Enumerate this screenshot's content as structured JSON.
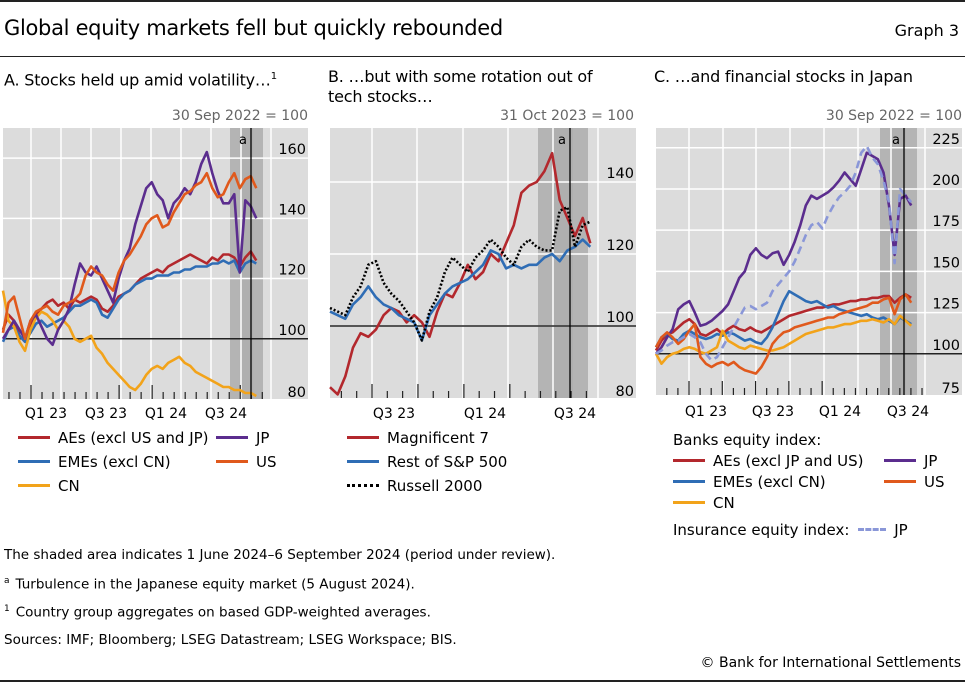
{
  "header": {
    "title": "Global equity markets fell but quickly rebounded",
    "graph_label": "Graph 3"
  },
  "colors": {
    "red": "#b3282d",
    "blue": "#2f6db5",
    "yellow": "#f2a31a",
    "purple": "#5b2d8e",
    "orange": "#e0591c",
    "lightblue": "#8a97d8",
    "black": "#000000",
    "plot_bg": "#dcdcdc",
    "shade": "#b4b4b4"
  },
  "chart_data": [
    {
      "id": "A",
      "type": "line",
      "title": "A. Stocks held up amid volatility…",
      "title_sup": "1",
      "unit_label": "30 Sep 2022 = 100",
      "xlabel": "",
      "ylabel": "",
      "x_range": [
        "2022-10",
        "2024-10"
      ],
      "x_ticks": [
        "Q1 23",
        "Q3 23",
        "Q1 24",
        "Q3 24"
      ],
      "ylim": [
        80,
        170
      ],
      "y_ticks": [
        80,
        100,
        120,
        140,
        160
      ],
      "baseline": 100,
      "shaded_period": [
        "2024-06-01",
        "2024-09-06"
      ],
      "event_line": {
        "date": "2024-08-05",
        "label": "a"
      },
      "grid": true,
      "x": [
        0,
        0.5,
        1,
        1.5,
        2,
        2.5,
        3,
        3.5,
        4,
        4.5,
        5,
        5.5,
        6,
        6.5,
        7,
        7.5,
        8,
        8.5,
        9,
        9.5,
        10,
        10.5,
        11,
        11.5,
        12,
        12.5,
        13,
        13.5,
        14,
        14.5,
        15,
        15.5,
        16,
        16.5,
        17,
        17.5,
        18,
        18.5,
        19,
        19.5,
        20,
        20.5,
        21,
        21.5,
        22,
        22.5,
        23
      ],
      "series": [
        {
          "name": "AEs (excl US and JP)",
          "color_key": "red",
          "style": "solid",
          "values": [
            103,
            108,
            106,
            101,
            99,
            104,
            108,
            110,
            112,
            113,
            111,
            112,
            110,
            113,
            112,
            113,
            114,
            113,
            110,
            109,
            111,
            114,
            115,
            116,
            118,
            120,
            121,
            122,
            123,
            122,
            124,
            125,
            126,
            127,
            128,
            127,
            126,
            125,
            127,
            126,
            128,
            128,
            127,
            124,
            127,
            129,
            126
          ]
        },
        {
          "name": "EMEs (excl CN)",
          "color_key": "blue",
          "style": "solid",
          "values": [
            99,
            103,
            104,
            101,
            99,
            102,
            105,
            106,
            104,
            105,
            106,
            107,
            109,
            111,
            111,
            112,
            113,
            112,
            108,
            107,
            110,
            113,
            115,
            116,
            118,
            119,
            120,
            120,
            121,
            121,
            121,
            122,
            122,
            123,
            123,
            124,
            124,
            124,
            125,
            125,
            126,
            125,
            126,
            122,
            125,
            126,
            125
          ]
        },
        {
          "name": "CN",
          "color_key": "yellow",
          "style": "solid",
          "values": [
            116,
            106,
            104,
            99,
            96,
            103,
            107,
            109,
            108,
            106,
            103,
            106,
            104,
            100,
            99,
            100,
            101,
            97,
            95,
            92,
            90,
            88,
            86,
            84,
            83,
            85,
            88,
            90,
            91,
            90,
            92,
            93,
            94,
            92,
            91,
            89,
            88,
            87,
            86,
            85,
            84,
            84,
            83,
            83,
            82,
            82,
            81
          ]
        },
        {
          "name": "JP",
          "color_key": "purple",
          "style": "solid",
          "values": [
            100,
            103,
            106,
            103,
            100,
            106,
            108,
            104,
            100,
            98,
            103,
            106,
            110,
            118,
            125,
            122,
            121,
            124,
            120,
            116,
            112,
            120,
            126,
            130,
            138,
            144,
            150,
            152,
            148,
            146,
            140,
            145,
            147,
            150,
            148,
            152,
            158,
            162,
            155,
            149,
            145,
            145,
            148,
            122,
            146,
            144,
            140
          ]
        },
        {
          "name": "US",
          "color_key": "orange",
          "style": "solid",
          "values": [
            102,
            112,
            114,
            107,
            100,
            106,
            109,
            110,
            111,
            109,
            108,
            111,
            112,
            113,
            115,
            121,
            124,
            122,
            121,
            118,
            116,
            122,
            126,
            128,
            131,
            134,
            138,
            140,
            141,
            137,
            138,
            142,
            145,
            148,
            149,
            151,
            152,
            155,
            150,
            147,
            148,
            152,
            155,
            150,
            153,
            154,
            150
          ]
        }
      ]
    },
    {
      "id": "B",
      "type": "line",
      "title": "B. …but with some rotation out of tech stocks…",
      "unit_label": "31 Oct 2023 = 100",
      "xlabel": "",
      "ylabel": "",
      "x_range": [
        "2023-04",
        "2024-10"
      ],
      "x_ticks": [
        "Q3 23",
        "Q1 24",
        "Q3 24"
      ],
      "ylim": [
        80,
        155
      ],
      "y_ticks": [
        80,
        100,
        120,
        140
      ],
      "baseline": 100,
      "shaded_period": [
        "2024-06-01",
        "2024-09-06"
      ],
      "event_line": {
        "date": "2024-08-05",
        "label": "a"
      },
      "grid": true,
      "x": [
        0,
        0.5,
        1,
        1.5,
        2,
        2.5,
        3,
        3.5,
        4,
        4.5,
        5,
        5.5,
        6,
        6.5,
        7,
        7.5,
        8,
        8.5,
        9,
        9.5,
        10,
        10.5,
        11,
        11.5,
        12,
        12.5,
        13,
        13.5,
        14,
        14.5,
        15,
        15.5,
        16,
        16.5,
        17
      ],
      "series": [
        {
          "name": "Magnificent 7",
          "color_key": "red",
          "style": "solid",
          "values": [
            83,
            81,
            86,
            94,
            98,
            97,
            99,
            103,
            105,
            104,
            101,
            103,
            101,
            97,
            104,
            109,
            108,
            112,
            117,
            113,
            115,
            120,
            118,
            123,
            128,
            137,
            139,
            140,
            143,
            148,
            135,
            130,
            125,
            130,
            123
          ]
        },
        {
          "name": "Rest of S&P 500",
          "color_key": "blue",
          "style": "solid",
          "values": [
            104,
            103,
            102,
            106,
            108,
            111,
            108,
            106,
            105,
            103,
            102,
            101,
            96,
            103,
            106,
            109,
            111,
            112,
            113,
            115,
            117,
            121,
            120,
            116,
            117,
            116,
            117,
            117,
            119,
            120,
            118,
            121,
            122,
            124,
            122
          ]
        },
        {
          "name": "Russell 2000",
          "color_key": "black",
          "style": "dotted",
          "values": [
            105,
            104,
            103,
            108,
            111,
            117,
            118,
            112,
            109,
            107,
            104,
            101,
            96,
            104,
            108,
            115,
            119,
            117,
            115,
            119,
            121,
            124,
            122,
            119,
            117,
            122,
            124,
            122,
            121,
            121,
            132,
            133,
            122,
            128,
            129
          ]
        }
      ]
    },
    {
      "id": "C",
      "type": "line",
      "title": "C. …and financial stocks in Japan",
      "unit_label": "30 Sep 2022 = 100",
      "xlabel": "",
      "ylabel": "",
      "x_range": [
        "2022-10",
        "2024-10"
      ],
      "x_ticks": [
        "Q1 23",
        "Q3 23",
        "Q1 24",
        "Q3 24"
      ],
      "ylim": [
        75,
        237
      ],
      "y_ticks": [
        75,
        100,
        125,
        150,
        175,
        200,
        225
      ],
      "baseline": 100,
      "shaded_period": [
        "2024-06-01",
        "2024-09-06"
      ],
      "event_line": {
        "date": "2024-08-05",
        "label": "a"
      },
      "grid": true,
      "x": [
        0,
        0.5,
        1,
        1.5,
        2,
        2.5,
        3,
        3.5,
        4,
        4.5,
        5,
        5.5,
        6,
        6.5,
        7,
        7.5,
        8,
        8.5,
        9,
        9.5,
        10,
        10.5,
        11,
        11.5,
        12,
        12.5,
        13,
        13.5,
        14,
        14.5,
        15,
        15.5,
        16,
        16.5,
        17,
        17.5,
        18,
        18.5,
        19,
        19.5,
        20,
        20.5,
        21,
        21.5,
        22,
        22.5,
        23
      ],
      "legend_header": "Banks equity index:",
      "legend_footer": "Insurance equity index:",
      "series": [
        {
          "name": "AEs (excl JP and US)",
          "color_key": "red",
          "style": "solid",
          "values": [
            102,
            108,
            112,
            113,
            116,
            119,
            121,
            118,
            112,
            111,
            113,
            115,
            112,
            115,
            117,
            115,
            114,
            116,
            114,
            113,
            115,
            117,
            119,
            121,
            123,
            124,
            125,
            126,
            127,
            128,
            128,
            129,
            130,
            130,
            131,
            132,
            132,
            133,
            133,
            134,
            134,
            135,
            135,
            131,
            134,
            136,
            134
          ]
        },
        {
          "name": "EMEs (excl CN)",
          "color_key": "blue",
          "style": "solid",
          "values": [
            104,
            110,
            112,
            109,
            108,
            112,
            114,
            112,
            110,
            109,
            110,
            112,
            111,
            113,
            112,
            110,
            108,
            109,
            107,
            106,
            110,
            116,
            124,
            132,
            138,
            136,
            134,
            132,
            131,
            132,
            130,
            128,
            129,
            127,
            126,
            125,
            124,
            123,
            124,
            122,
            121,
            122,
            120,
            118,
            122,
            120,
            118
          ]
        },
        {
          "name": "CN",
          "color_key": "yellow",
          "style": "solid",
          "values": [
            100,
            94,
            98,
            100,
            101,
            103,
            104,
            103,
            101,
            100,
            102,
            104,
            114,
            108,
            106,
            104,
            103,
            105,
            104,
            103,
            102,
            102,
            103,
            104,
            106,
            108,
            110,
            112,
            113,
            114,
            115,
            116,
            116,
            117,
            118,
            118,
            119,
            120,
            120,
            121,
            120,
            119,
            121,
            118,
            123,
            120,
            117
          ]
        },
        {
          "name": "JP",
          "color_key": "purple",
          "style": "solid",
          "values": [
            100,
            104,
            110,
            115,
            127,
            130,
            132,
            125,
            117,
            118,
            120,
            123,
            126,
            130,
            138,
            146,
            150,
            160,
            164,
            160,
            158,
            161,
            162,
            154,
            160,
            168,
            178,
            190,
            196,
            194,
            196,
            198,
            201,
            205,
            210,
            206,
            202,
            212,
            222,
            220,
            218,
            210,
            190,
            160,
            194,
            196,
            190
          ]
        },
        {
          "name": "US",
          "color_key": "orange",
          "style": "solid",
          "values": [
            104,
            110,
            113,
            110,
            106,
            109,
            114,
            118,
            98,
            94,
            92,
            94,
            95,
            93,
            95,
            92,
            90,
            89,
            88,
            92,
            98,
            106,
            110,
            113,
            114,
            116,
            117,
            118,
            119,
            120,
            121,
            122,
            122,
            124,
            125,
            126,
            127,
            128,
            129,
            131,
            131,
            133,
            134,
            124,
            133,
            136,
            131
          ]
        },
        {
          "name": "JP (insurance)",
          "color_key": "lightblue",
          "style": "dashed",
          "values": [
            100,
            102,
            105,
            107,
            108,
            110,
            112,
            110,
            107,
            100,
            96,
            98,
            104,
            110,
            116,
            122,
            128,
            129,
            127,
            129,
            131,
            138,
            142,
            146,
            150,
            156,
            164,
            172,
            178,
            180,
            176,
            184,
            190,
            195,
            198,
            202,
            210,
            222,
            226,
            219,
            215,
            205,
            192,
            155,
            200,
            196,
            192
          ]
        }
      ]
    }
  ],
  "panels": {
    "A": {
      "title": "A. Stocks held up amid volatility…",
      "title_sup": "1",
      "unit": "30 Sep 2022 = 100",
      "event_label": "a",
      "yticks": [
        "160",
        "140",
        "120",
        "100",
        "80"
      ],
      "xticks": [
        "Q1 23",
        "Q3 23",
        "Q1 24",
        "Q3 24"
      ],
      "legend": [
        "AEs (excl US and JP)",
        "JP",
        "EMEs (excl CN)",
        "US",
        "CN"
      ]
    },
    "B": {
      "title_line1": "B. …but with some rotation out of",
      "title_line2": "tech stocks…",
      "unit": "31 Oct 2023 = 100",
      "event_label": "a",
      "yticks": [
        "140",
        "120",
        "100",
        "80"
      ],
      "xticks": [
        "Q3 23",
        "Q1 24",
        "Q3 24"
      ],
      "legend": [
        "Magnificent 7",
        "Rest of S&P 500",
        "Russell 2000"
      ]
    },
    "C": {
      "title": "C. …and financial stocks in Japan",
      "unit": "30 Sep 2022 = 100",
      "event_label": "a",
      "yticks": [
        "225",
        "200",
        "175",
        "150",
        "125",
        "100",
        "75"
      ],
      "xticks": [
        "Q1 23",
        "Q3 23",
        "Q1 24",
        "Q3 24"
      ],
      "legend_header": "Banks equity index:",
      "legend": [
        "AEs (excl JP and US)",
        "JP",
        "EMEs (excl CN)",
        "US",
        "CN"
      ],
      "legend_footer": "Insurance equity index:",
      "legend_footer_item": "JP"
    }
  },
  "notes": {
    "shaded": "The shaded area indicates 1 June 2024–6 September 2024 (period under review).",
    "a_mark": "a",
    "a_text": "Turbulence in the Japanese equity market (5 August 2024).",
    "one_mark": "1",
    "one_text": "Country group aggregates on based GDP-weighted averages.",
    "sources": "Sources: IMF; Bloomberg; LSEG Datastream; LSEG Workspace; BIS."
  },
  "footer": {
    "copyright": "© Bank for International Settlements"
  }
}
